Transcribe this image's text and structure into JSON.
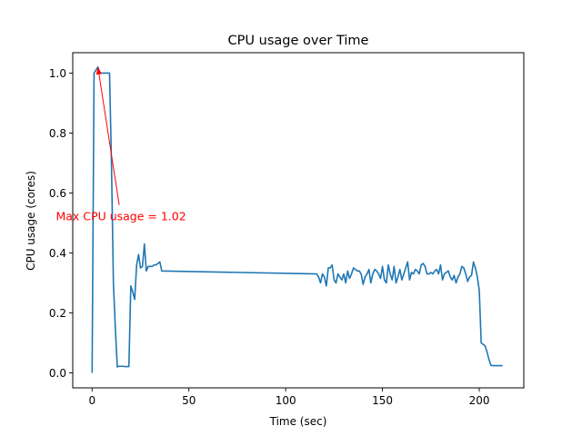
{
  "chart_data": {
    "type": "line",
    "title": "CPU usage over Time",
    "xlabel": "Time (sec)",
    "ylabel": "CPU usage (cores)",
    "xlim": [
      -10,
      223
    ],
    "ylim": [
      -0.05,
      1.068
    ],
    "xticks": [
      0,
      50,
      100,
      150,
      200
    ],
    "yticks": [
      0.0,
      0.2,
      0.4,
      0.6,
      0.8,
      1.0
    ],
    "xtick_labels": [
      "0",
      "50",
      "100",
      "150",
      "200"
    ],
    "ytick_labels": [
      "0.0",
      "0.2",
      "0.4",
      "0.6",
      "0.8",
      "1.0"
    ],
    "grid": false,
    "series": [
      {
        "color": "#1f77b4",
        "x": [
          0,
          1,
          2,
          3,
          4,
          5,
          6,
          8,
          9,
          10,
          11,
          12,
          13,
          14,
          15,
          16,
          17,
          18,
          19,
          20,
          21,
          22,
          23,
          24,
          25,
          26,
          27,
          28,
          29,
          30,
          31,
          32,
          33,
          34,
          35,
          36,
          116,
          117,
          118,
          119,
          120,
          121,
          122,
          123,
          124,
          125,
          126,
          127,
          128,
          129,
          130,
          131,
          132,
          133,
          134,
          135,
          136,
          137,
          138,
          139,
          140,
          141,
          142,
          143,
          144,
          145,
          146,
          147,
          148,
          149,
          150,
          151,
          152,
          153,
          154,
          155,
          156,
          157,
          158,
          159,
          160,
          161,
          162,
          163,
          164,
          165,
          166,
          167,
          168,
          169,
          170,
          171,
          172,
          173,
          174,
          175,
          176,
          177,
          178,
          179,
          180,
          181,
          182,
          183,
          184,
          185,
          186,
          187,
          188,
          189,
          190,
          191,
          192,
          193,
          194,
          195,
          196,
          197,
          198,
          199,
          200,
          201,
          202,
          203,
          204,
          205,
          206,
          207,
          208,
          209,
          210,
          211,
          212
        ],
        "y": [
          0.0,
          1.0,
          1.01,
          1.02,
          1.0,
          1.0,
          1.0,
          1.0,
          1.0,
          0.7,
          0.3,
          0.15,
          0.02,
          0.022,
          0.022,
          0.022,
          0.021,
          0.021,
          0.021,
          0.29,
          0.27,
          0.245,
          0.36,
          0.395,
          0.35,
          0.355,
          0.43,
          0.34,
          0.355,
          0.355,
          0.355,
          0.36,
          0.36,
          0.365,
          0.37,
          0.34,
          0.33,
          0.32,
          0.3,
          0.33,
          0.32,
          0.29,
          0.35,
          0.35,
          0.36,
          0.31,
          0.3,
          0.33,
          0.32,
          0.31,
          0.33,
          0.3,
          0.34,
          0.315,
          0.33,
          0.35,
          0.345,
          0.34,
          0.34,
          0.33,
          0.295,
          0.32,
          0.33,
          0.345,
          0.3,
          0.33,
          0.345,
          0.34,
          0.33,
          0.315,
          0.355,
          0.31,
          0.3,
          0.36,
          0.33,
          0.31,
          0.355,
          0.3,
          0.32,
          0.345,
          0.31,
          0.33,
          0.35,
          0.37,
          0.31,
          0.335,
          0.33,
          0.345,
          0.34,
          0.33,
          0.36,
          0.365,
          0.355,
          0.33,
          0.33,
          0.335,
          0.33,
          0.34,
          0.345,
          0.33,
          0.36,
          0.31,
          0.33,
          0.335,
          0.34,
          0.32,
          0.31,
          0.325,
          0.3,
          0.32,
          0.33,
          0.355,
          0.35,
          0.33,
          0.305,
          0.32,
          0.325,
          0.37,
          0.35,
          0.32,
          0.275,
          0.1,
          0.095,
          0.09,
          0.07,
          0.045,
          0.025,
          0.024,
          0.024,
          0.024,
          0.024,
          0.024,
          0.024
        ]
      }
    ],
    "annotations": [
      {
        "text": "Max CPU usage = 1.02",
        "color": "#ff0000",
        "arrow_to": [
          3,
          1.02
        ],
        "arrow_from": [
          14,
          0.56
        ]
      }
    ]
  }
}
